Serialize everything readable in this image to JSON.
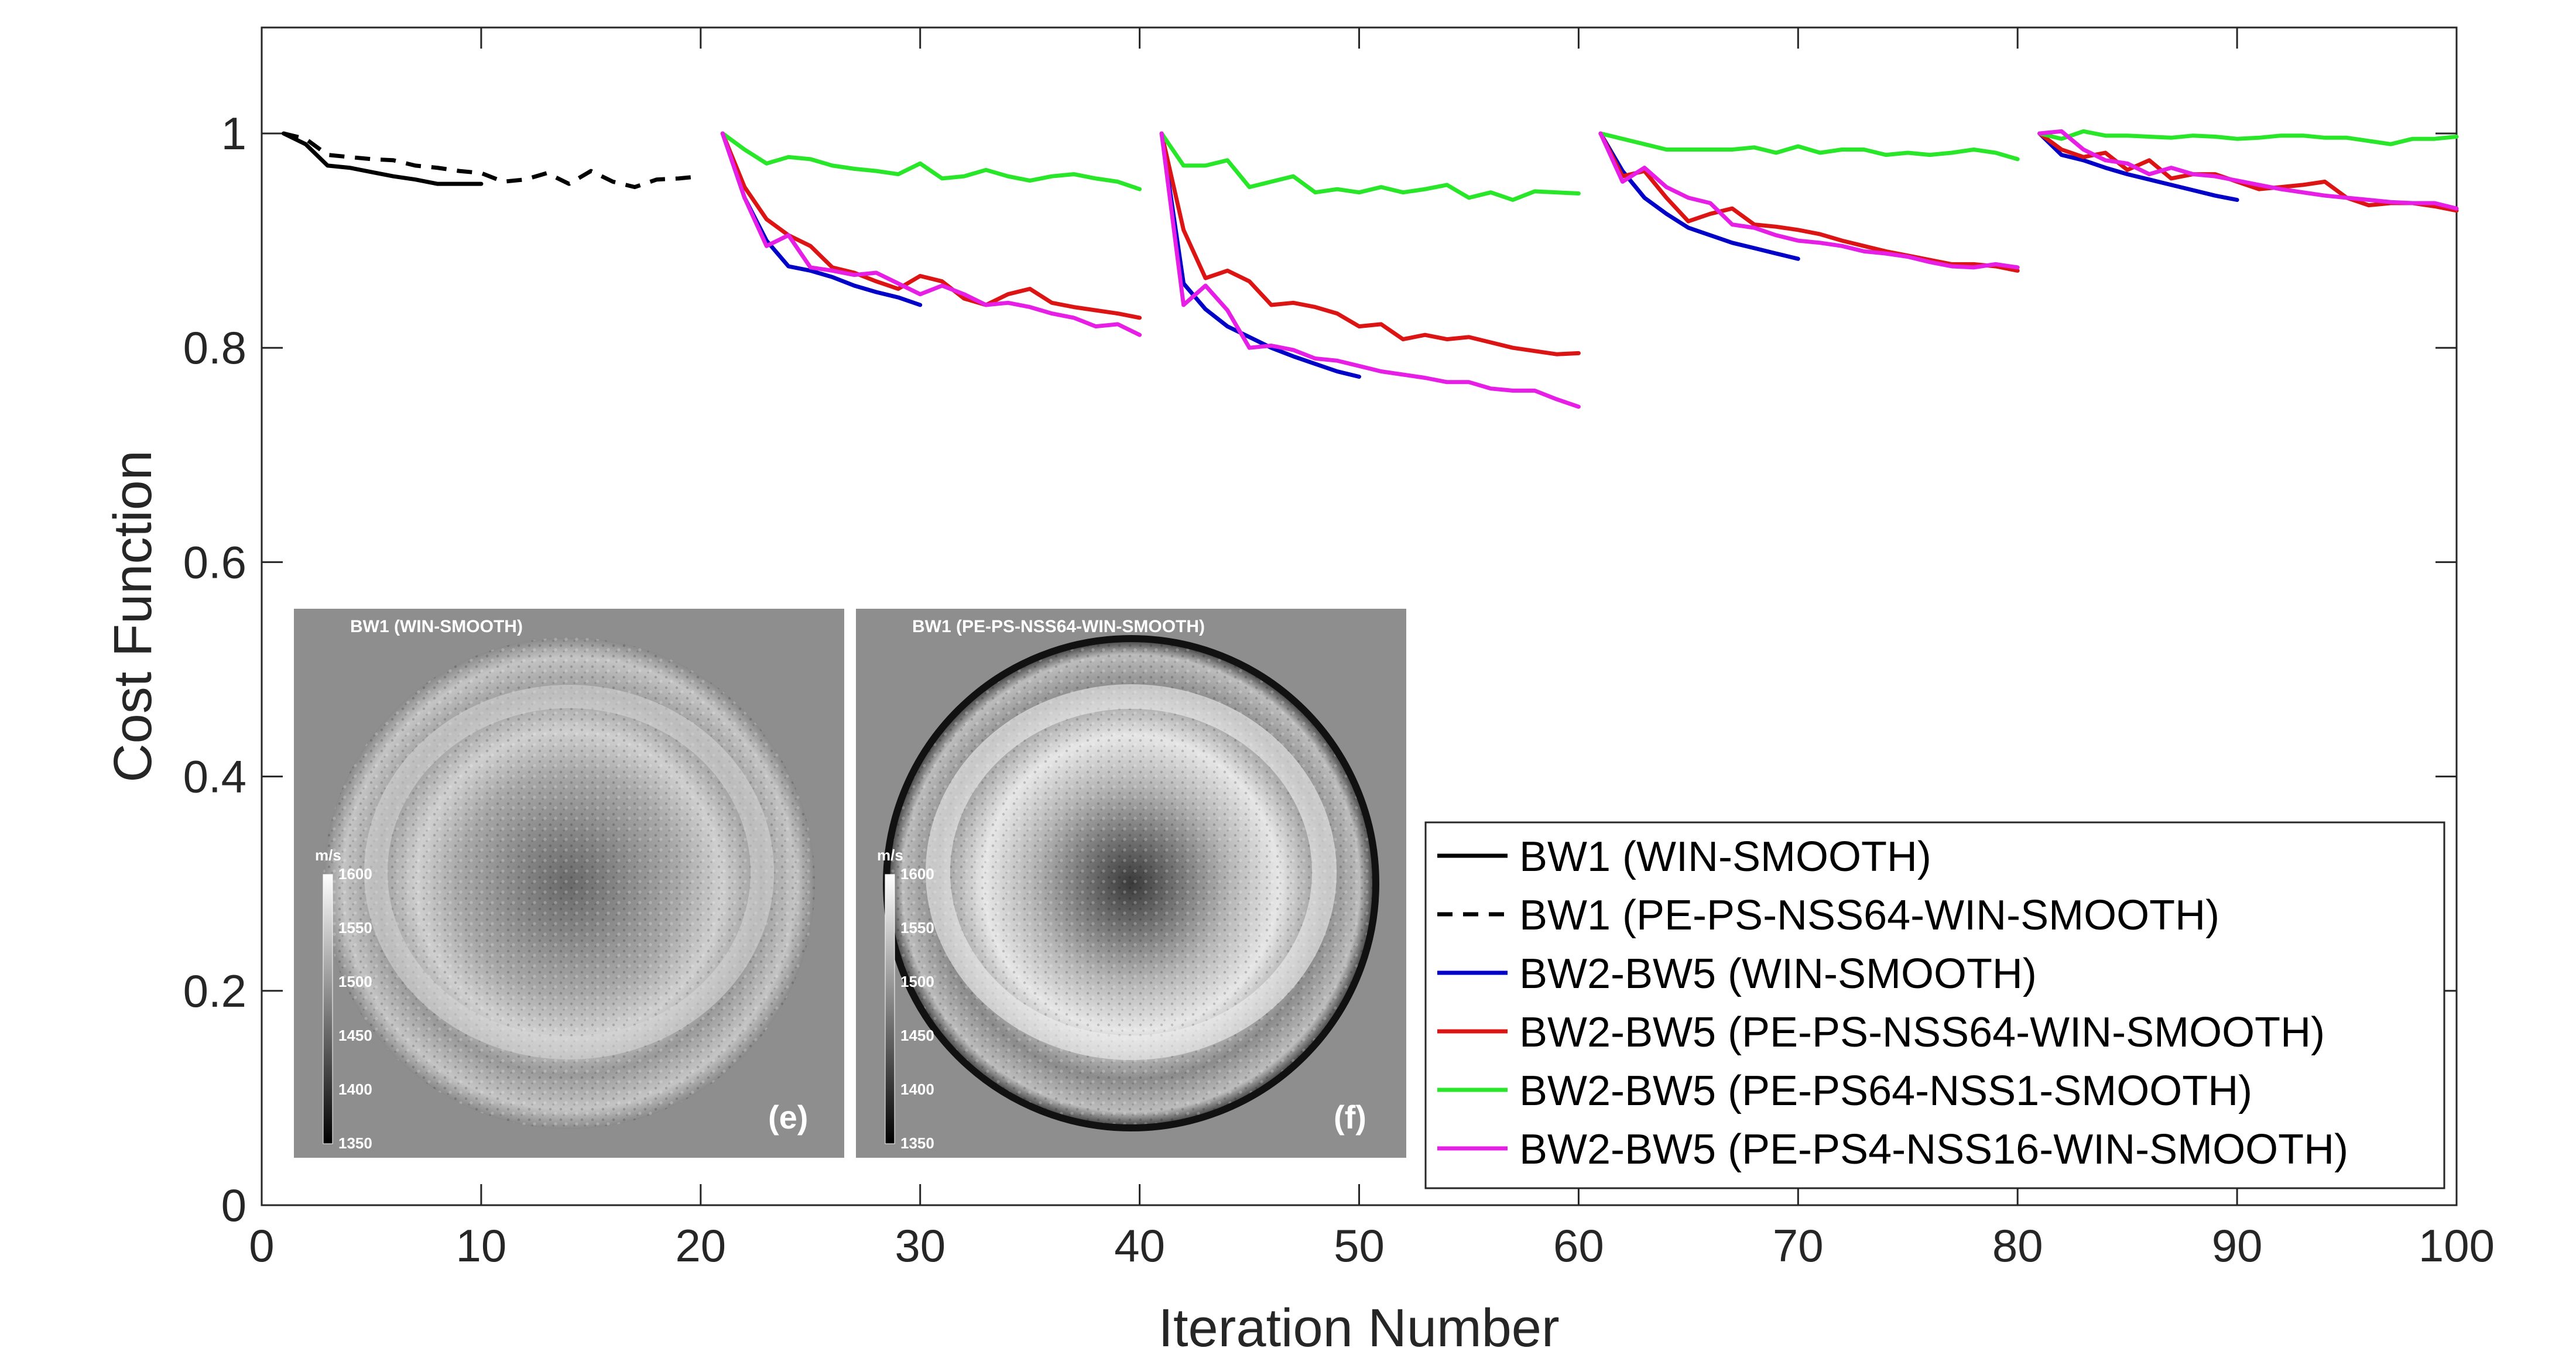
{
  "chart_data": {
    "type": "line",
    "title": "",
    "xlabel": "Iteration Number",
    "ylabel": "Cost Function",
    "xlim": [
      0,
      100
    ],
    "ylim": [
      0,
      1.1
    ],
    "xticks": [
      0,
      10,
      20,
      30,
      40,
      50,
      60,
      70,
      80,
      90,
      100
    ],
    "yticks": [
      0,
      0.2,
      0.4,
      0.6,
      0.8,
      1
    ],
    "ytick_labels": [
      "0",
      "0.2",
      "0.4",
      "0.6",
      "0.8",
      "1"
    ],
    "grid": false,
    "legend_position": "bottom-right",
    "series": [
      {
        "name": "BW1 (WIN-SMOOTH)",
        "color": "#000000",
        "dash": "solid",
        "x": [
          1,
          2,
          3,
          4,
          5,
          6,
          7,
          8,
          9,
          10
        ],
        "y": [
          1.0,
          0.99,
          0.97,
          0.968,
          0.964,
          0.96,
          0.957,
          0.953,
          0.953,
          0.953
        ]
      },
      {
        "name": "BW1 (PE-PS-NSS64-WIN-SMOOTH)",
        "color": "#000000",
        "dash": "dashed",
        "x": [
          1,
          2,
          3,
          4,
          5,
          6,
          7,
          8,
          9,
          10,
          11,
          12,
          13,
          14,
          15,
          16,
          17,
          18,
          19,
          20
        ],
        "y": [
          1.0,
          0.995,
          0.98,
          0.978,
          0.976,
          0.975,
          0.97,
          0.968,
          0.965,
          0.963,
          0.955,
          0.957,
          0.963,
          0.953,
          0.965,
          0.955,
          0.95,
          0.957,
          0.958,
          0.96
        ]
      },
      {
        "name": "BW2-BW5 (WIN-SMOOTH)",
        "color": "#0000c8",
        "dash": "solid",
        "segments": [
          {
            "x": [
              21,
              22,
              23,
              24,
              25,
              26,
              27,
              28,
              29,
              30
            ],
            "y": [
              1.0,
              0.94,
              0.9,
              0.876,
              0.872,
              0.866,
              0.858,
              0.852,
              0.847,
              0.84
            ]
          },
          {
            "x": [
              41,
              42,
              43,
              44,
              45,
              46,
              47,
              48,
              49,
              50
            ],
            "y": [
              1.0,
              0.86,
              0.836,
              0.82,
              0.81,
              0.8,
              0.792,
              0.785,
              0.778,
              0.773
            ]
          },
          {
            "x": [
              61,
              62,
              63,
              64,
              65,
              66,
              67,
              68,
              69,
              70
            ],
            "y": [
              1.0,
              0.965,
              0.94,
              0.925,
              0.912,
              0.905,
              0.898,
              0.893,
              0.888,
              0.883
            ]
          },
          {
            "x": [
              81,
              82,
              83,
              84,
              85,
              86,
              87,
              88,
              89,
              90
            ],
            "y": [
              1.0,
              0.98,
              0.975,
              0.968,
              0.962,
              0.957,
              0.952,
              0.947,
              0.942,
              0.938
            ]
          }
        ]
      },
      {
        "name": "BW2-BW5 (PE-PS-NSS64-WIN-SMOOTH)",
        "color": "#dc1414",
        "dash": "solid",
        "segments": [
          {
            "x": [
              21,
              22,
              23,
              24,
              25,
              26,
              27,
              28,
              29,
              30,
              31,
              32,
              33,
              34,
              35,
              36,
              37,
              38,
              39,
              40
            ],
            "y": [
              1.0,
              0.95,
              0.92,
              0.905,
              0.895,
              0.875,
              0.87,
              0.862,
              0.855,
              0.867,
              0.862,
              0.846,
              0.84,
              0.85,
              0.855,
              0.842,
              0.838,
              0.835,
              0.832,
              0.828
            ]
          },
          {
            "x": [
              41,
              42,
              43,
              44,
              45,
              46,
              47,
              48,
              49,
              50,
              51,
              52,
              53,
              54,
              55,
              56,
              57,
              58,
              59,
              60
            ],
            "y": [
              1.0,
              0.91,
              0.865,
              0.872,
              0.862,
              0.84,
              0.842,
              0.838,
              0.832,
              0.82,
              0.822,
              0.808,
              0.812,
              0.808,
              0.81,
              0.805,
              0.8,
              0.797,
              0.794,
              0.795
            ]
          },
          {
            "x": [
              61,
              62,
              63,
              64,
              65,
              66,
              67,
              68,
              69,
              70,
              71,
              72,
              73,
              74,
              75,
              76,
              77,
              78,
              79,
              80
            ],
            "y": [
              1.0,
              0.96,
              0.965,
              0.94,
              0.918,
              0.925,
              0.93,
              0.915,
              0.913,
              0.91,
              0.906,
              0.9,
              0.895,
              0.89,
              0.886,
              0.882,
              0.878,
              0.878,
              0.876,
              0.872
            ]
          },
          {
            "x": [
              81,
              82,
              83,
              84,
              85,
              86,
              87,
              88,
              89,
              90,
              91,
              92,
              93,
              94,
              95,
              96,
              97,
              98,
              99,
              100
            ],
            "y": [
              1.0,
              0.985,
              0.978,
              0.982,
              0.966,
              0.975,
              0.958,
              0.962,
              0.962,
              0.955,
              0.948,
              0.95,
              0.952,
              0.955,
              0.94,
              0.933,
              0.935,
              0.935,
              0.932,
              0.928
            ]
          }
        ]
      },
      {
        "name": "BW2-BW5 (PE-PS64-NSS1-SMOOTH)",
        "color": "#28e628",
        "dash": "solid",
        "segments": [
          {
            "x": [
              21,
              22,
              23,
              24,
              25,
              26,
              27,
              28,
              29,
              30,
              31,
              32,
              33,
              34,
              35,
              36,
              37,
              38,
              39,
              40
            ],
            "y": [
              1.0,
              0.985,
              0.972,
              0.978,
              0.976,
              0.97,
              0.967,
              0.965,
              0.962,
              0.972,
              0.958,
              0.96,
              0.966,
              0.96,
              0.956,
              0.96,
              0.962,
              0.958,
              0.955,
              0.948
            ]
          },
          {
            "x": [
              41,
              42,
              43,
              44,
              45,
              46,
              47,
              48,
              49,
              50,
              51,
              52,
              53,
              54,
              55,
              56,
              57,
              58,
              59,
              60
            ],
            "y": [
              1.0,
              0.97,
              0.97,
              0.975,
              0.95,
              0.955,
              0.96,
              0.945,
              0.948,
              0.945,
              0.95,
              0.945,
              0.948,
              0.952,
              0.94,
              0.945,
              0.938,
              0.946,
              0.945,
              0.944
            ]
          },
          {
            "x": [
              61,
              62,
              63,
              64,
              65,
              66,
              67,
              68,
              69,
              70,
              71,
              72,
              73,
              74,
              75,
              76,
              77,
              78,
              79,
              80
            ],
            "y": [
              1.0,
              0.995,
              0.99,
              0.985,
              0.985,
              0.985,
              0.985,
              0.987,
              0.982,
              0.988,
              0.982,
              0.985,
              0.985,
              0.98,
              0.982,
              0.98,
              0.982,
              0.985,
              0.982,
              0.976
            ]
          },
          {
            "x": [
              81,
              82,
              83,
              84,
              85,
              86,
              87,
              88,
              89,
              90,
              91,
              92,
              93,
              94,
              95,
              96,
              97,
              98,
              99,
              100
            ],
            "y": [
              1.0,
              0.995,
              1.002,
              0.998,
              0.998,
              0.997,
              0.996,
              0.998,
              0.997,
              0.995,
              0.996,
              0.998,
              0.998,
              0.996,
              0.996,
              0.993,
              0.99,
              0.995,
              0.995,
              0.997
            ]
          }
        ]
      },
      {
        "name": "BW2-BW5 (PE-PS4-NSS16-WIN-SMOOTH)",
        "color": "#e61ee6",
        "dash": "solid",
        "segments": [
          {
            "x": [
              21,
              22,
              23,
              24,
              25,
              26,
              27,
              28,
              29,
              30,
              31,
              32,
              33,
              34,
              35,
              36,
              37,
              38,
              39,
              40
            ],
            "y": [
              1.0,
              0.94,
              0.895,
              0.905,
              0.875,
              0.872,
              0.868,
              0.87,
              0.86,
              0.85,
              0.858,
              0.85,
              0.84,
              0.842,
              0.838,
              0.832,
              0.828,
              0.82,
              0.822,
              0.812
            ]
          },
          {
            "x": [
              41,
              42,
              43,
              44,
              45,
              46,
              47,
              48,
              49,
              50,
              51,
              52,
              53,
              54,
              55,
              56,
              57,
              58,
              59,
              60
            ],
            "y": [
              1.0,
              0.84,
              0.858,
              0.835,
              0.8,
              0.802,
              0.798,
              0.79,
              0.788,
              0.783,
              0.778,
              0.775,
              0.772,
              0.768,
              0.768,
              0.762,
              0.76,
              0.76,
              0.752,
              0.745
            ]
          },
          {
            "x": [
              61,
              62,
              63,
              64,
              65,
              66,
              67,
              68,
              69,
              70,
              71,
              72,
              73,
              74,
              75,
              76,
              77,
              78,
              79,
              80
            ],
            "y": [
              1.0,
              0.955,
              0.968,
              0.95,
              0.94,
              0.935,
              0.915,
              0.912,
              0.905,
              0.9,
              0.898,
              0.895,
              0.89,
              0.888,
              0.885,
              0.88,
              0.876,
              0.875,
              0.878,
              0.875
            ]
          },
          {
            "x": [
              81,
              82,
              83,
              84,
              85,
              86,
              87,
              88,
              89,
              90,
              91,
              92,
              93,
              94,
              95,
              96,
              97,
              98,
              99,
              100
            ],
            "y": [
              1.0,
              1.002,
              0.985,
              0.975,
              0.972,
              0.962,
              0.968,
              0.962,
              0.96,
              0.956,
              0.952,
              0.948,
              0.945,
              0.942,
              0.94,
              0.938,
              0.936,
              0.935,
              0.935,
              0.93
            ]
          }
        ]
      }
    ],
    "insets": [
      {
        "title": "BW1 (WIN-SMOOTH)",
        "tag": "(e)",
        "colorbar": {
          "unit": "m/s",
          "ticks": [
            "1600",
            "1550",
            "1500",
            "1450",
            "1400",
            "1350"
          ]
        }
      },
      {
        "title": "BW1 (PE-PS-NSS64-WIN-SMOOTH)",
        "tag": "(f)",
        "colorbar": {
          "unit": "m/s",
          "ticks": [
            "1600",
            "1550",
            "1500",
            "1450",
            "1400",
            "1350"
          ]
        }
      }
    ]
  }
}
